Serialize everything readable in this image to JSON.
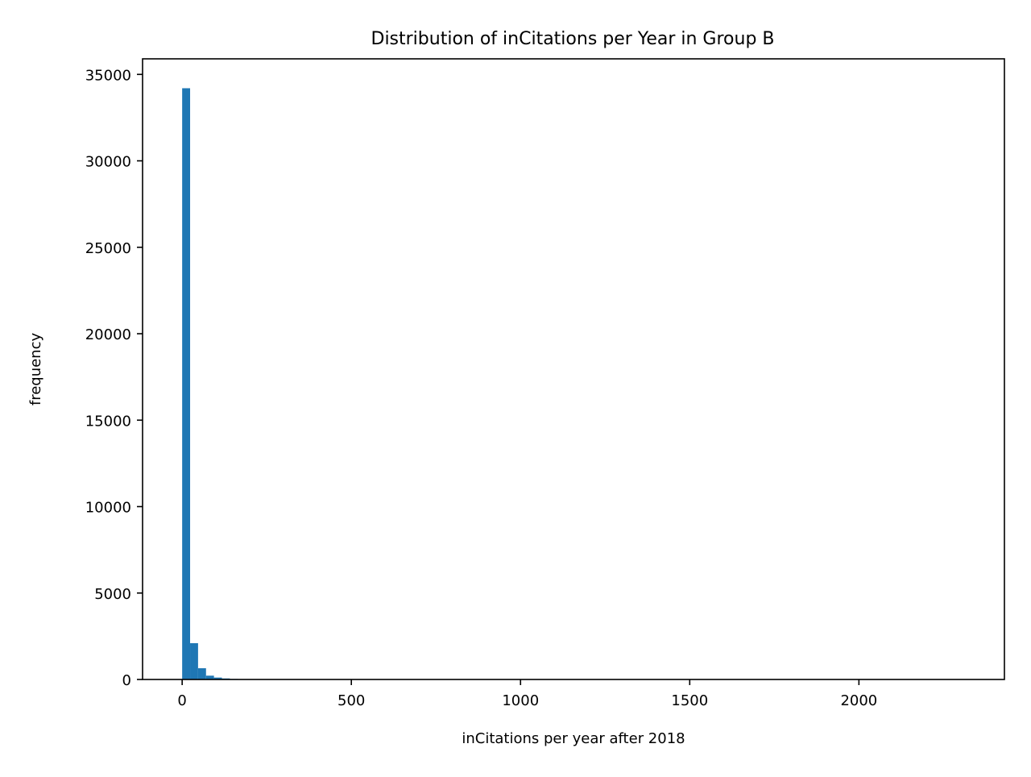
{
  "chart_data": {
    "type": "bar",
    "title": "Distribution of inCitations per Year in Group B",
    "xlabel": "inCitations per year after 2018",
    "ylabel": "frequency",
    "xlim": [
      -117,
      2430
    ],
    "ylim": [
      0,
      35900
    ],
    "xticks": [
      0,
      500,
      1000,
      1500,
      2000
    ],
    "yticks": [
      0,
      5000,
      10000,
      15000,
      20000,
      25000,
      30000,
      35000
    ],
    "bin_width": 23.5,
    "bins": [
      {
        "x0": 0.0,
        "x1": 23.5,
        "count": 34200
      },
      {
        "x0": 23.5,
        "x1": 47.0,
        "count": 2100
      },
      {
        "x0": 47.0,
        "x1": 70.5,
        "count": 650
      },
      {
        "x0": 70.5,
        "x1": 94.0,
        "count": 220
      },
      {
        "x0": 94.0,
        "x1": 117.5,
        "count": 110
      },
      {
        "x0": 117.5,
        "x1": 141.0,
        "count": 60
      },
      {
        "x0": 141.0,
        "x1": 164.5,
        "count": 30
      },
      {
        "x0": 164.5,
        "x1": 188.0,
        "count": 18
      },
      {
        "x0": 188.0,
        "x1": 211.5,
        "count": 10
      },
      {
        "x0": 211.5,
        "x1": 235.0,
        "count": 7
      },
      {
        "x0": 235.0,
        "x1": 258.5,
        "count": 5
      },
      {
        "x0": 258.5,
        "x1": 282.0,
        "count": 3
      }
    ],
    "bar_color": "#1f77b4",
    "grid": false,
    "legend": "none"
  }
}
